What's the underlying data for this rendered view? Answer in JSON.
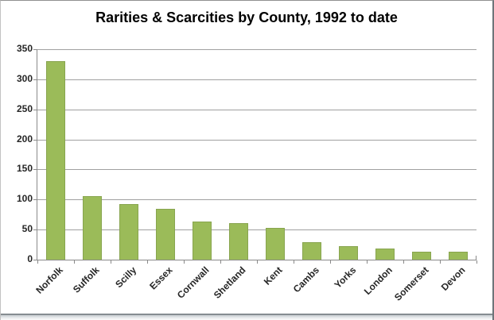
{
  "chart_data": {
    "type": "bar",
    "title": "Rarities & Scarcities by County, 1992 to date",
    "categories": [
      "Norfolk",
      "Suffolk",
      "Scilly",
      "Essex",
      "Cornwall",
      "Shetland",
      "Kent",
      "Cambs",
      "Yorks",
      "London",
      "Somerset",
      "Devon"
    ],
    "values": [
      330,
      105,
      92,
      84,
      63,
      61,
      53,
      29,
      22,
      18,
      13,
      13
    ],
    "xlabel": "",
    "ylabel": "",
    "ylim": [
      0,
      350
    ],
    "yticks": [
      0,
      50,
      100,
      150,
      200,
      250,
      300,
      350
    ],
    "grid": true,
    "legend": false,
    "colors": {
      "bar_fill": "#9bbb59",
      "bar_border": "#88a54f",
      "gridline": "#a0a0a0",
      "axis": "#8a8a8a",
      "tick_label": "#262626",
      "title": "#000000",
      "background": "#ffffff"
    }
  }
}
